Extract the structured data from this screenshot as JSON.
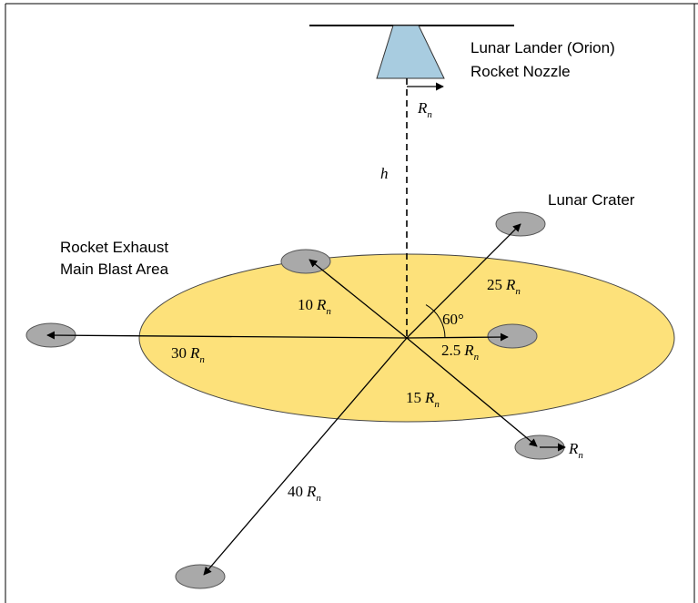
{
  "labels": {
    "lander_line1": "Lunar Lander (Orion)",
    "lander_line2": "Rocket Nozzle",
    "crater": "Lunar Crater",
    "exhaust_line1": "Rocket Exhaust",
    "exhaust_line2": "Main Blast Area",
    "height_symbol": "h",
    "angle": "60°"
  },
  "radius_symbol": "R",
  "radius_subscript": "n",
  "distances": {
    "nozzle": "",
    "d10": "10",
    "d25": "25",
    "d30": "30",
    "d2_5": "2.5",
    "d15": "15",
    "d40": "40",
    "crater_edge": ""
  },
  "colors": {
    "blast_area": "#fde17a",
    "blast_border": "#444444",
    "nozzle_fill": "#a8cce0",
    "crater_fill": "#a9a9a9",
    "line": "#000000"
  }
}
